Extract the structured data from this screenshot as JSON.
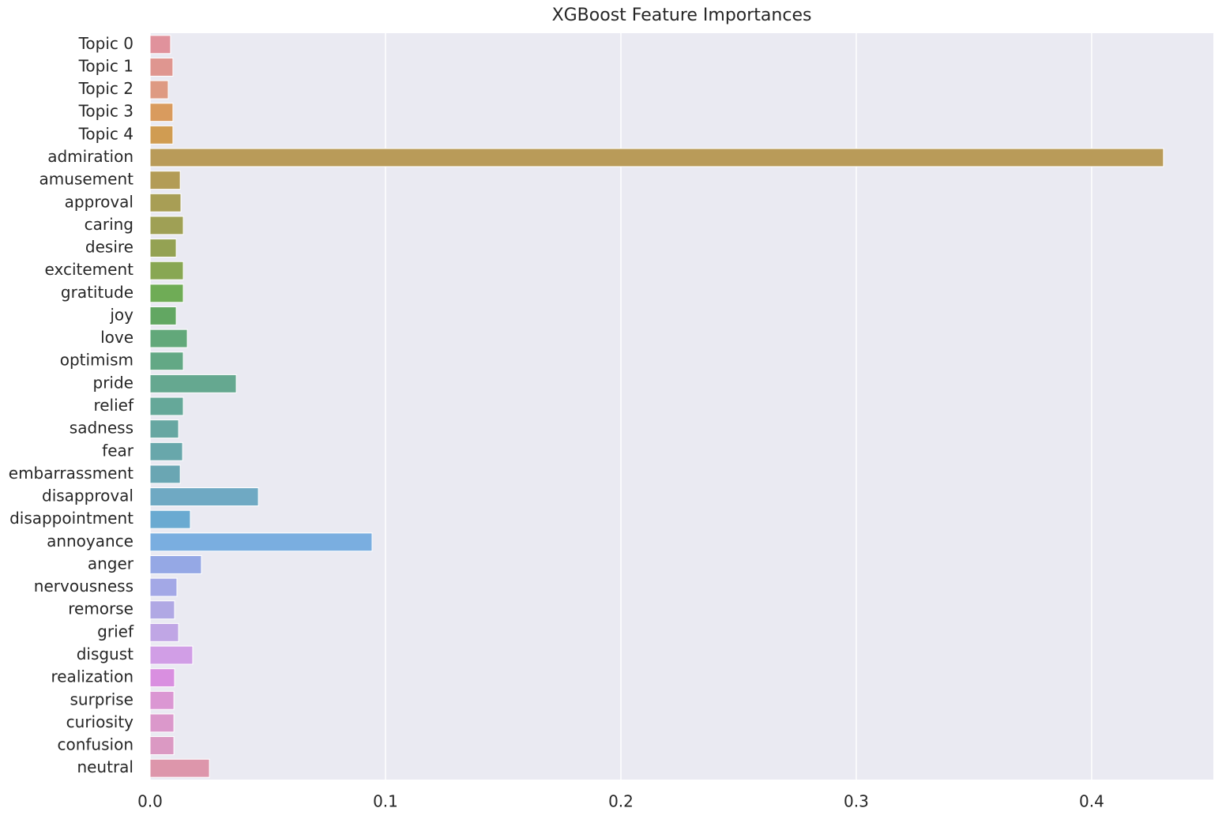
{
  "chart_data": {
    "type": "barh",
    "title": "XGBoost Feature Importances",
    "categories": [
      "Topic 0",
      "Topic 1",
      "Topic 2",
      "Topic 3",
      "Topic 4",
      "admiration",
      "amusement",
      "approval",
      "caring",
      "desire",
      "excitement",
      "gratitude",
      "joy",
      "love",
      "optimism",
      "pride",
      "relief",
      "sadness",
      "fear",
      "embarrassment",
      "disapproval",
      "disappointment",
      "annoyance",
      "anger",
      "nervousness",
      "remorse",
      "grief",
      "disgust",
      "realization",
      "surprise",
      "curiosity",
      "confusion",
      "neutral"
    ],
    "values": [
      0.0087,
      0.0097,
      0.0077,
      0.0097,
      0.0097,
      0.4305,
      0.0128,
      0.0131,
      0.0141,
      0.0111,
      0.0141,
      0.0141,
      0.0111,
      0.0158,
      0.0141,
      0.0366,
      0.0141,
      0.0121,
      0.0138,
      0.0128,
      0.046,
      0.0171,
      0.0943,
      0.0218,
      0.0114,
      0.0104,
      0.0121,
      0.0181,
      0.0104,
      0.0101,
      0.0101,
      0.0101,
      0.0252
    ],
    "colors": [
      "#e0929c",
      "#df9690",
      "#de9a82",
      "#d99b5e",
      "#d09c52",
      "#b99b59",
      "#b39c56",
      "#a89e55",
      "#9fa055",
      "#94a253",
      "#88a753",
      "#6fac56",
      "#62a762",
      "#62a87a",
      "#63a885",
      "#65a890",
      "#65a899",
      "#67a7a2",
      "#68a7ab",
      "#6aa6b3",
      "#6fa9c3",
      "#6aaad1",
      "#7aaee0",
      "#95a8e5",
      "#a3a8e6",
      "#b0a8e4",
      "#c0a6e5",
      "#d19ee6",
      "#d98fe0",
      "#db97d3",
      "#db98cb",
      "#db99c3",
      "#dd96ab"
    ],
    "xlim": [
      0,
      0.4517
    ],
    "xticks": [
      {
        "value": 0,
        "label": "0.0"
      },
      0.1,
      0.2,
      0.3,
      0.4
    ],
    "grid": true
  }
}
